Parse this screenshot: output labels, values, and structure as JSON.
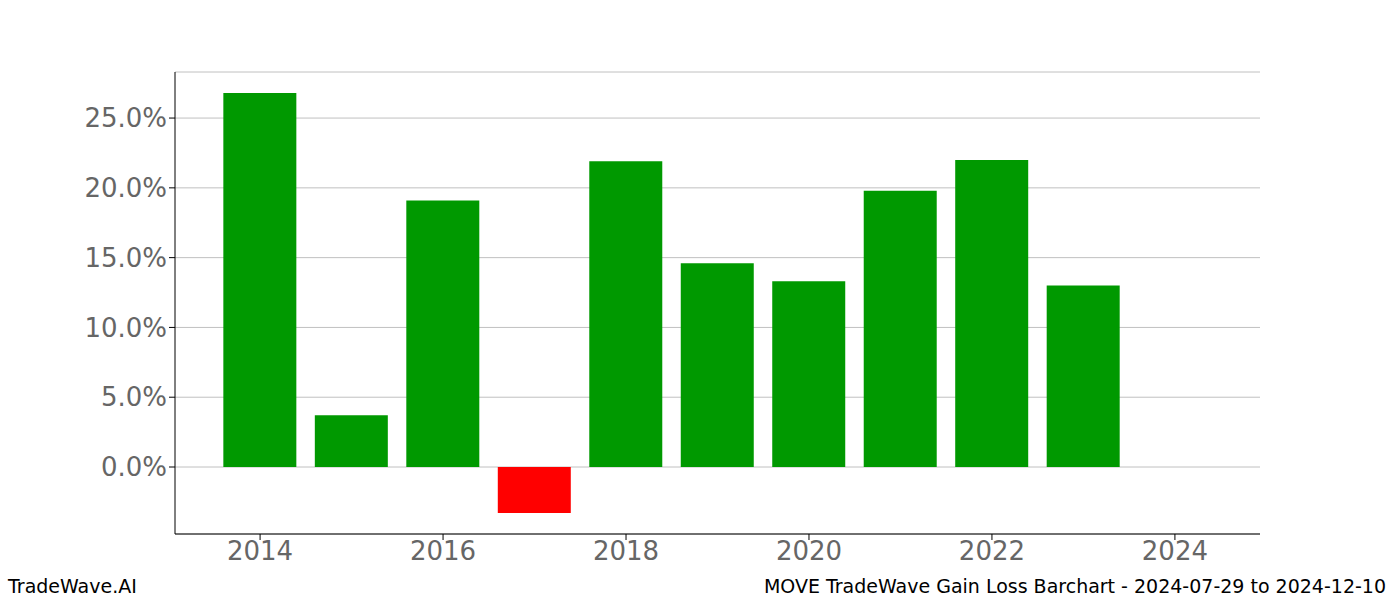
{
  "chart_data": {
    "type": "bar",
    "x": [
      2014,
      2015,
      2016,
      2017,
      2018,
      2019,
      2020,
      2021,
      2022,
      2023
    ],
    "values": [
      26.8,
      3.7,
      19.1,
      -3.3,
      21.9,
      14.6,
      13.3,
      19.8,
      22.0,
      13.0
    ],
    "colors": [
      "#009900",
      "#009900",
      "#009900",
      "#ff0000",
      "#009900",
      "#009900",
      "#009900",
      "#009900",
      "#009900",
      "#009900"
    ],
    "xlim": [
      2013.07,
      2024.93
    ],
    "xticks": [
      2014,
      2016,
      2018,
      2020,
      2022,
      2024
    ],
    "ylim": [
      -4.8,
      28.3
    ],
    "yticks": [
      {
        "value": 0,
        "label": "0.0%"
      },
      {
        "value": 5,
        "label": "5.0%"
      },
      {
        "value": 10,
        "label": "10.0%"
      },
      {
        "value": 15,
        "label": "15.0%"
      },
      {
        "value": 20,
        "label": "20.0%"
      },
      {
        "value": 25,
        "label": "25.0%"
      }
    ],
    "grid": true,
    "annotations": [
      "TradeWave.AI",
      "MOVE TradeWave Gain Loss Barchart - 2024-07-29 to 2024-12-10"
    ]
  }
}
